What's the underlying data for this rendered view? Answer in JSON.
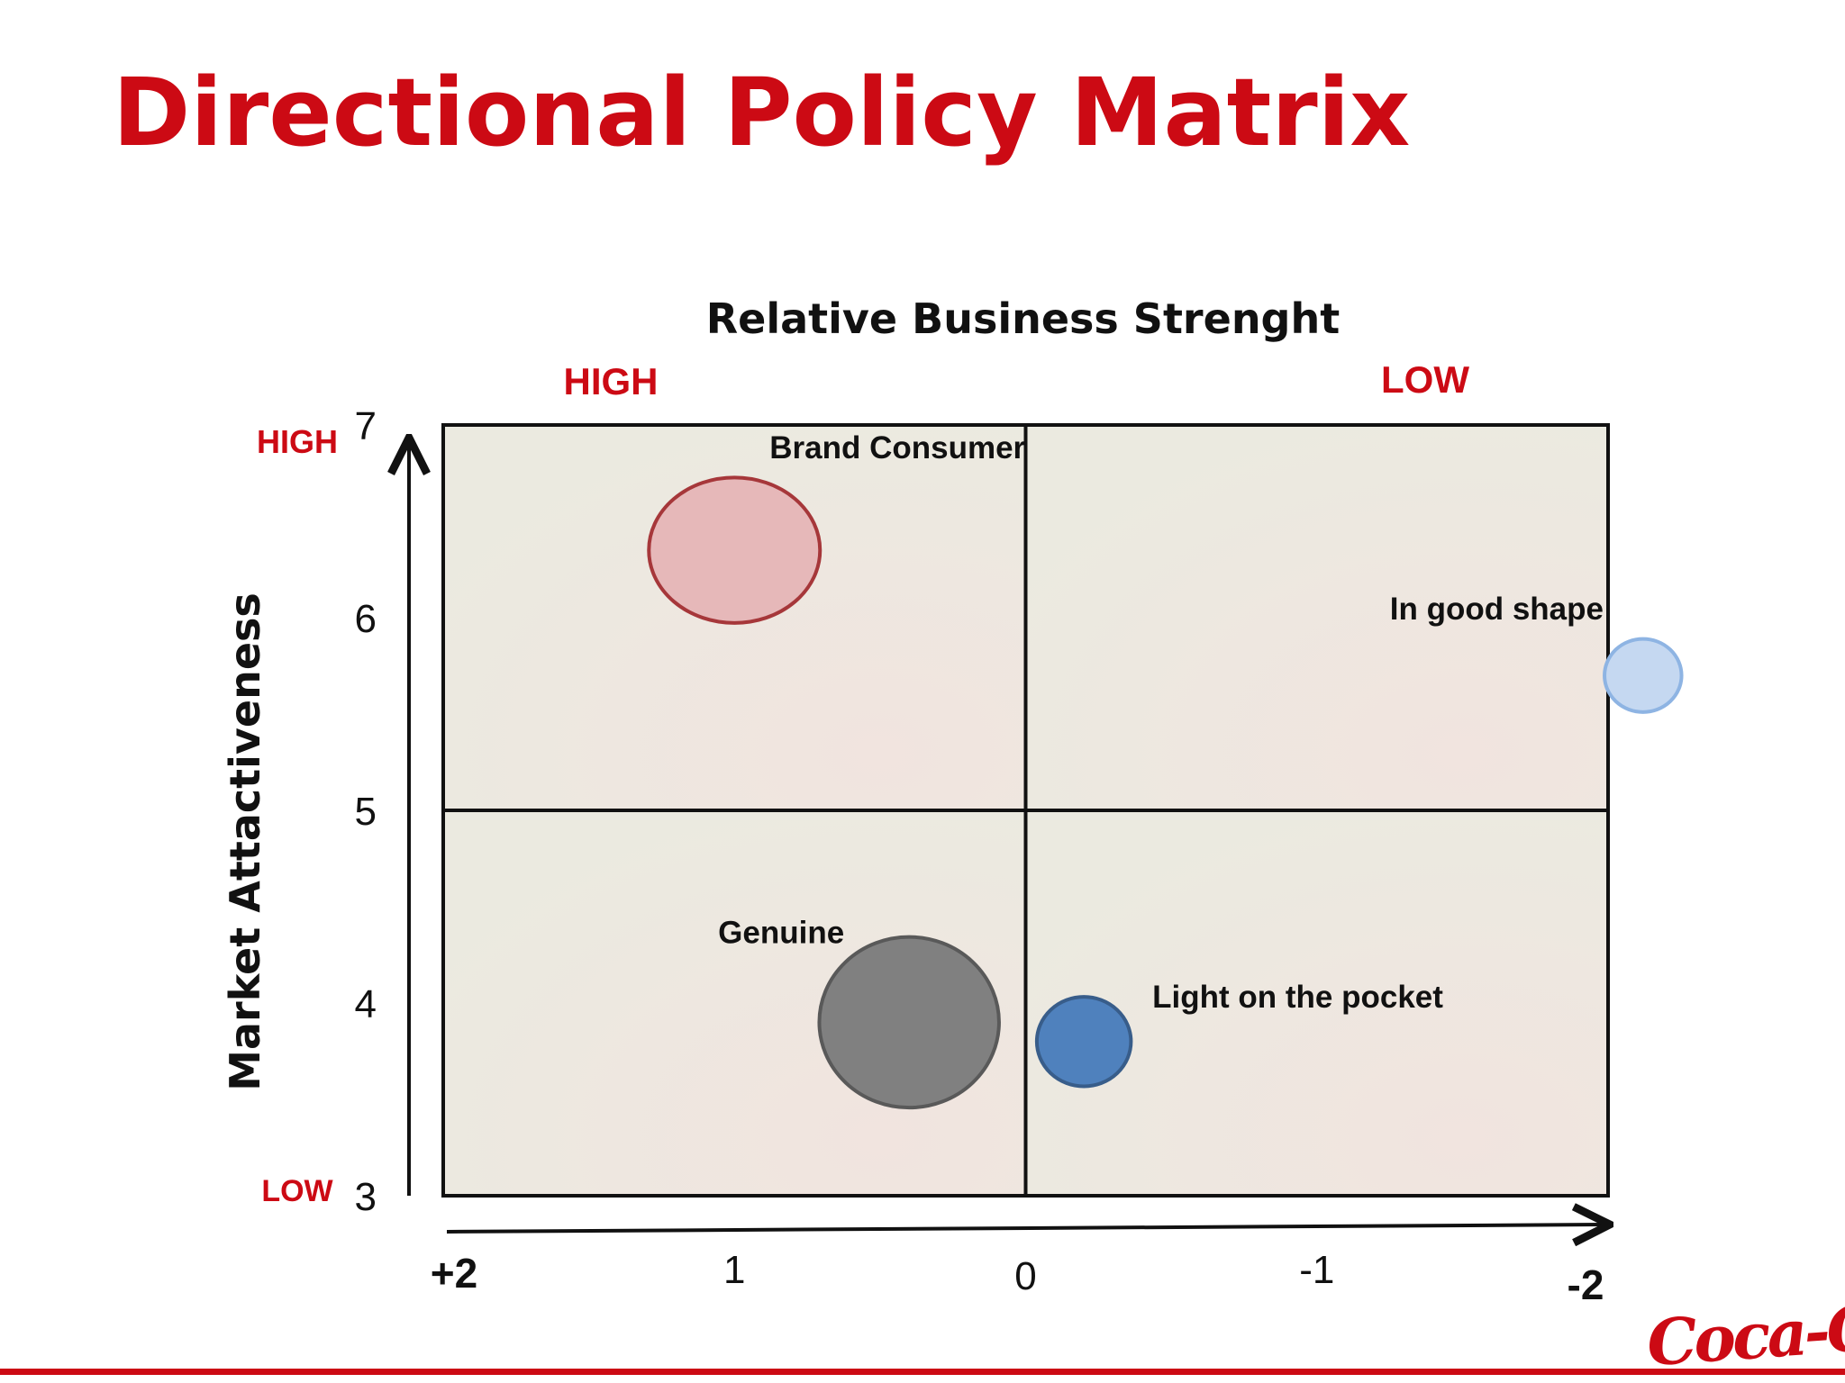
{
  "slide": {
    "title": "Directional Policy Matrix",
    "title_color": "#cc0a14",
    "accent_color": "#cc0a14",
    "logo_text": "Coca-Cola"
  },
  "chart_data": {
    "type": "scatter",
    "variant": "bubble",
    "title": "Relative Business Strenght",
    "xlabel": "Relative Business Strenght",
    "ylabel": "Market Attactiveness",
    "x_axis": {
      "ticks": [
        {
          "value": 2,
          "label": "+2"
        },
        {
          "value": 1,
          "label": "1"
        },
        {
          "value": 0,
          "label": "0"
        },
        {
          "value": -1,
          "label": "-1"
        },
        {
          "value": -2,
          "label": "-2"
        }
      ],
      "range": [
        2,
        -2
      ],
      "reversed": true,
      "high_label": "HIGH",
      "low_label": "LOW"
    },
    "y_axis": {
      "ticks": [
        7,
        6,
        5,
        4,
        3
      ],
      "range": [
        3,
        7
      ],
      "high_label": "HIGH",
      "low_label": "LOW"
    },
    "quadrant_dividers": {
      "x": 0,
      "y": 5
    },
    "grid": false,
    "points": [
      {
        "label": "Brand Consumer",
        "x": 1.0,
        "y": 6.35,
        "size": 1.0,
        "color": "#e6b8b9",
        "stroke": "#a6373a",
        "label_pos": "upper-right"
      },
      {
        "label": "In good shape",
        "x": -2.12,
        "y": 5.7,
        "size": 0.45,
        "color": "#c5d8f1",
        "stroke": "#8eb4e3",
        "label_pos": "left-above"
      },
      {
        "label": "Genuine",
        "x": 0.4,
        "y": 3.9,
        "size": 1.05,
        "color": "#808080",
        "stroke": "#595959",
        "label_pos": "upper-left"
      },
      {
        "label": "Light on the pocket",
        "x": -0.2,
        "y": 3.8,
        "size": 0.55,
        "color": "#4f81bd",
        "stroke": "#385d8a",
        "label_pos": "upper-right"
      }
    ],
    "colors": {
      "quadrant_fill": "#ecebe1",
      "frame": "#111111",
      "text": "#111111"
    }
  }
}
